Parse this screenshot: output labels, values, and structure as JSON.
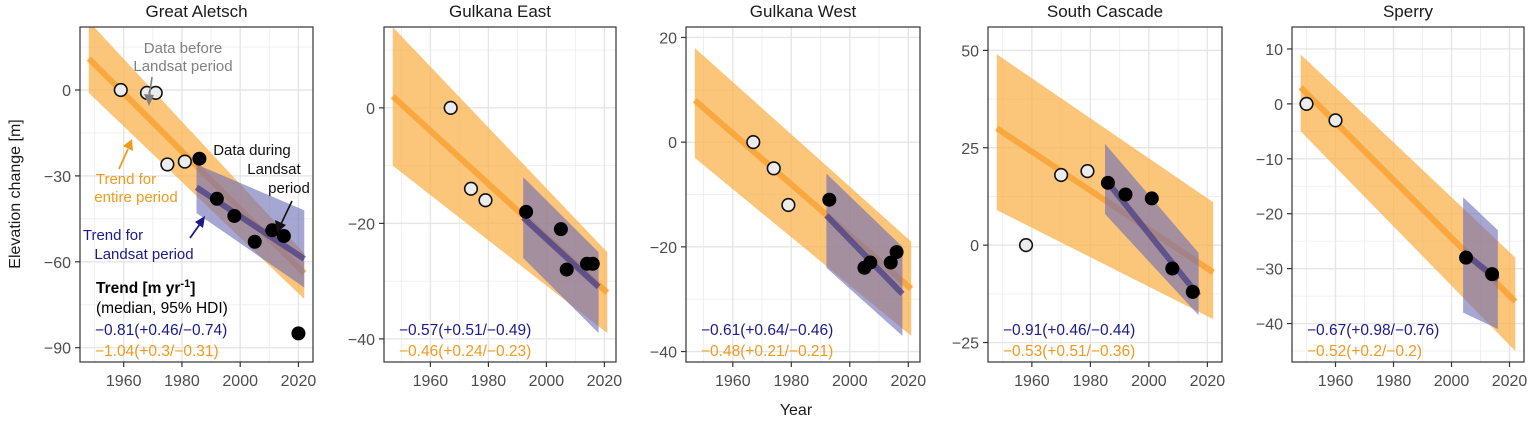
{
  "figure": {
    "ylabel": "Elevation change [m]",
    "xlabel": "Year",
    "trend_header": "Trend [m yr",
    "trend_header_sup": "-1",
    "trend_header_end": "]",
    "trend_subheader": "(median, 95% HDI)",
    "annotations": {
      "before": [
        "Data before",
        "Landsat period"
      ],
      "during": [
        "Data during",
        "Landsat",
        "period"
      ],
      "trend_entire": [
        "Trend for",
        "entire period"
      ],
      "trend_landsat": [
        "Trend for",
        "Landsat period"
      ]
    },
    "colors": {
      "entire_band": "#f9b24d",
      "entire_line": "#f7a234",
      "landsat_band": "#6a6ab5",
      "landsat_line": "#4a3f86",
      "text_landsat": "#1a1a8c",
      "text_entire": "#f09a1e",
      "annotation_gray": "#808080",
      "grid": "#e6e6e6"
    }
  },
  "chart_data": [
    {
      "type": "scatter",
      "title": "Great Aletsch",
      "xlim": [
        1945,
        2025
      ],
      "ylim": [
        -95,
        22
      ],
      "xticks": [
        1960,
        1980,
        2000,
        2020
      ],
      "xtick_labels": [
        "1960",
        "1980",
        "2000",
        "2020"
      ],
      "yticks": [
        0,
        -30,
        -60,
        -90
      ],
      "ytick_labels": [
        "0",
        "−30",
        "−60",
        "−90"
      ],
      "before": [
        [
          1959,
          0
        ],
        [
          1968,
          -1
        ],
        [
          1971,
          -1
        ],
        [
          1975,
          -26
        ],
        [
          1981,
          -25
        ]
      ],
      "during": [
        [
          1986,
          -24
        ],
        [
          1992,
          -38
        ],
        [
          1998,
          -44
        ],
        [
          2005,
          -53
        ],
        [
          2011,
          -49
        ],
        [
          2015,
          -51
        ],
        [
          2020,
          -85
        ]
      ],
      "entire_trend": {
        "x": [
          1948,
          2022
        ],
        "median": [
          11,
          -64
        ],
        "lower": [
          -1,
          -73
        ],
        "upper": [
          24,
          -57
        ]
      },
      "landsat_trend": {
        "x": [
          1985,
          2022
        ],
        "median": [
          -34,
          -59
        ],
        "lower": [
          -43,
          -69
        ],
        "upper": [
          -26,
          -42
        ]
      },
      "trend_landsat_text": "−0.81(+0.46/−0.74)",
      "trend_entire_text": "−1.04(+0.3/−0.31)"
    },
    {
      "type": "scatter",
      "title": "Gulkana East",
      "xlim": [
        1944,
        2024
      ],
      "ylim": [
        -44,
        14
      ],
      "xticks": [
        1960,
        1980,
        2000,
        2020
      ],
      "xtick_labels": [
        "1960",
        "1980",
        "2000",
        "2020"
      ],
      "yticks": [
        0,
        -20,
        -40
      ],
      "ytick_labels": [
        "0",
        "−20",
        "−40"
      ],
      "before": [
        [
          1967,
          0
        ],
        [
          1974,
          -14
        ],
        [
          1979,
          -16
        ]
      ],
      "during": [
        [
          1993,
          -18
        ],
        [
          2005,
          -21
        ],
        [
          2007,
          -28
        ],
        [
          2014,
          -27
        ],
        [
          2016,
          -27
        ]
      ],
      "entire_trend": {
        "x": [
          1947,
          2021
        ],
        "median": [
          2,
          -32
        ],
        "lower": [
          -10,
          -39
        ],
        "upper": [
          14,
          -25
        ]
      },
      "landsat_trend": {
        "x": [
          1992,
          2018
        ],
        "median": [
          -19,
          -31
        ],
        "lower": [
          -26,
          -39
        ],
        "upper": [
          -12,
          -25
        ]
      },
      "trend_landsat_text": "−0.57(+0.51/−0.49)",
      "trend_entire_text": "−0.46(+0.24/−0.23)"
    },
    {
      "type": "scatter",
      "title": "Gulkana West",
      "xlim": [
        1944,
        2024
      ],
      "ylim": [
        -42,
        22
      ],
      "xticks": [
        1960,
        1980,
        2000,
        2020
      ],
      "xtick_labels": [
        "1960",
        "1980",
        "2000",
        "2020"
      ],
      "yticks": [
        20,
        0,
        -20,
        -40
      ],
      "ytick_labels": [
        "20",
        "0",
        "−20",
        "−40"
      ],
      "before": [
        [
          1967,
          0
        ],
        [
          1974,
          -5
        ],
        [
          1979,
          -12
        ]
      ],
      "during": [
        [
          1993,
          -11
        ],
        [
          2005,
          -24
        ],
        [
          2007,
          -23
        ],
        [
          2014,
          -23
        ],
        [
          2016,
          -21
        ]
      ],
      "entire_trend": {
        "x": [
          1947,
          2021
        ],
        "median": [
          8,
          -28
        ],
        "lower": [
          -3,
          -37
        ],
        "upper": [
          18,
          -19
        ]
      },
      "landsat_trend": {
        "x": [
          1992,
          2018
        ],
        "median": [
          -14,
          -29
        ],
        "lower": [
          -24,
          -37
        ],
        "upper": [
          -6,
          -20
        ]
      },
      "trend_landsat_text": "−0.61(+0.64/−0.46)",
      "trend_entire_text": "−0.48(+0.21/−0.21)"
    },
    {
      "type": "scatter",
      "title": "South Cascade",
      "xlim": [
        1945,
        2025
      ],
      "ylim": [
        -30,
        56
      ],
      "xticks": [
        1960,
        1980,
        2000,
        2020
      ],
      "xtick_labels": [
        "1960",
        "1980",
        "2000",
        "2020"
      ],
      "yticks": [
        50,
        25,
        0,
        -25
      ],
      "ytick_labels": [
        "50",
        "25",
        "0",
        "−25"
      ],
      "before": [
        [
          1958,
          0
        ],
        [
          1970,
          18
        ],
        [
          1979,
          19
        ]
      ],
      "during": [
        [
          1986,
          16
        ],
        [
          1992,
          13
        ],
        [
          2001,
          12
        ],
        [
          2008,
          -6
        ],
        [
          2015,
          -12
        ]
      ],
      "entire_trend": {
        "x": [
          1948,
          2022
        ],
        "median": [
          30,
          -7
        ],
        "lower": [
          9,
          -19
        ],
        "upper": [
          49,
          11
        ]
      },
      "landsat_trend": {
        "x": [
          1985,
          2017
        ],
        "median": [
          17,
          -13
        ],
        "lower": [
          8,
          -18
        ],
        "upper": [
          26,
          -2
        ]
      },
      "trend_landsat_text": "−0.91(+0.46/−0.44)",
      "trend_entire_text": "−0.53(+0.51/−0.36)"
    },
    {
      "type": "scatter",
      "title": "Sperry",
      "xlim": [
        1945,
        2025
      ],
      "ylim": [
        -47,
        14
      ],
      "xticks": [
        1960,
        1980,
        2000,
        2020
      ],
      "xtick_labels": [
        "1960",
        "1980",
        "2000",
        "2020"
      ],
      "yticks": [
        10,
        0,
        -10,
        -20,
        -30,
        -40
      ],
      "ytick_labels": [
        "10",
        "0",
        "−10",
        "−20",
        "−30",
        "−40"
      ],
      "before": [
        [
          1950,
          0
        ],
        [
          1960,
          -3
        ]
      ],
      "during": [
        [
          2005,
          -28
        ],
        [
          2014,
          -31
        ]
      ],
      "entire_trend": {
        "x": [
          1948,
          2022
        ],
        "median": [
          3,
          -36
        ],
        "lower": [
          -5,
          -45
        ],
        "upper": [
          9,
          -28
        ]
      },
      "landsat_trend": {
        "x": [
          2004,
          2016
        ],
        "median": [
          -27,
          -32
        ],
        "lower": [
          -38,
          -41
        ],
        "upper": [
          -17,
          -23
        ]
      },
      "trend_landsat_text": "−0.67(+0.98/−0.76)",
      "trend_entire_text": "−0.52(+0.2/−0.2)"
    }
  ]
}
